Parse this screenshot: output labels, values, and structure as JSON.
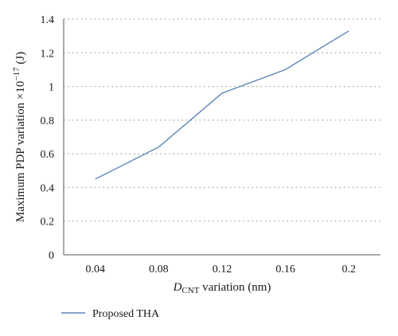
{
  "chart_data": {
    "type": "line",
    "x": [
      0.04,
      0.08,
      0.12,
      0.16,
      0.2
    ],
    "x_tick_labels": [
      "0.04",
      "0.08",
      "0.12",
      "0.16",
      "0.2"
    ],
    "y_ticks": [
      0,
      0.2,
      0.4,
      0.6,
      0.8,
      1,
      1.2,
      1.4
    ],
    "y_tick_labels": [
      "0",
      "0.2",
      "0.4",
      "0.6",
      "0.8",
      "1",
      "1.2",
      "1.4"
    ],
    "series": [
      {
        "name": "Proposed THA",
        "values": [
          0.45,
          0.64,
          0.96,
          1.1,
          1.33
        ],
        "color": "#5b84b8"
      }
    ],
    "xlabel": {
      "main": "D",
      "sub": "CNT",
      "rest": " variation (nm)"
    },
    "ylabel": {
      "main": "Maximum PDP variation ×10",
      "sup": "−17",
      "rest": " (J)"
    },
    "xlim": [
      0.02,
      0.22
    ],
    "ylim": [
      0,
      1.4
    ],
    "grid": "horizontal-dotted",
    "legend": "bottom-left"
  }
}
